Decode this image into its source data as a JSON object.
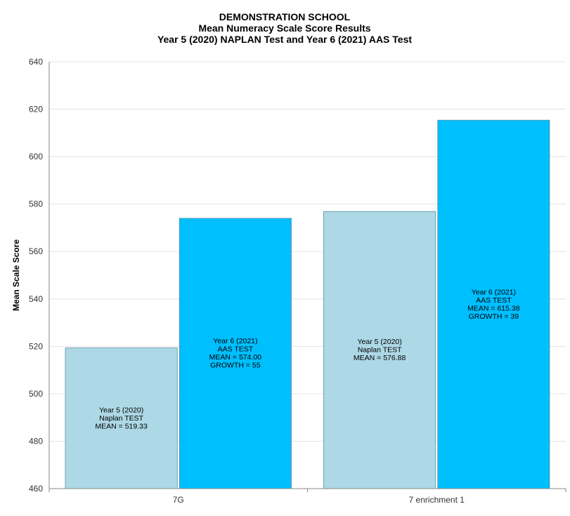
{
  "chart_data": {
    "type": "bar",
    "title": [
      "DEMONSTRATION SCHOOL",
      "Mean Numeracy Scale Score Results",
      "Year 5 (2020) NAPLAN Test and Year 6 (2021) AAS Test"
    ],
    "xlabel": "",
    "ylabel": "Mean Scale Score",
    "ylim": [
      460,
      640
    ],
    "yticks": [
      460,
      480,
      500,
      520,
      540,
      560,
      580,
      600,
      620,
      640
    ],
    "grid": true,
    "categories": [
      "7G",
      "7 enrichment 1"
    ],
    "series": [
      {
        "color": "#add8e6",
        "values": [
          519.33,
          576.88
        ],
        "labels": [
          [
            "Year 5 (2020)",
            "Naplan TEST",
            "MEAN = 519.33"
          ],
          [
            "Year 5 (2020)",
            "Naplan TEST",
            "MEAN = 576.88"
          ]
        ]
      },
      {
        "color": "#00bfff",
        "values": [
          574.0,
          615.38
        ],
        "labels": [
          [
            "Year 6 (2021)",
            "AAS TEST",
            "MEAN = 574.00",
            "GROWTH = 55"
          ],
          [
            "Year 6 (2021)",
            "AAS TEST",
            "MEAN = 615.38",
            "GROWTH = 39"
          ]
        ]
      }
    ]
  }
}
